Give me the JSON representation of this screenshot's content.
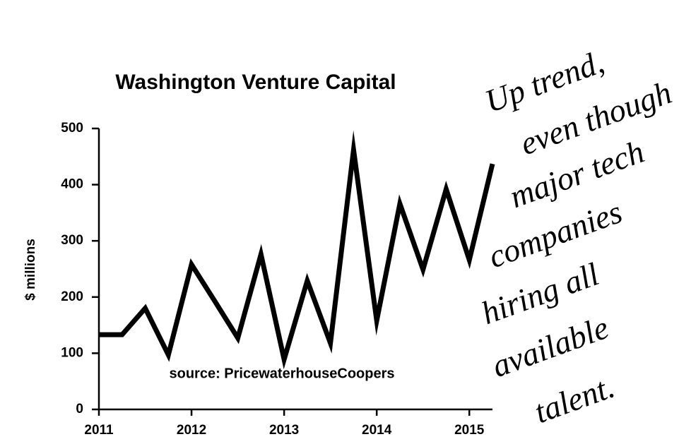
{
  "chart_data": {
    "type": "line",
    "title": "Washington Venture Capital",
    "ylabel": "$ millions",
    "source": "source: PricewaterhouseCoopers",
    "annotation": [
      "Up trend,",
      "even though",
      "major tech",
      "companies",
      "hiring all",
      "available",
      "talent."
    ],
    "x": [
      2011,
      2011.25,
      2011.5,
      2011.75,
      2012,
      2012.25,
      2012.5,
      2012.75,
      2013,
      2013.25,
      2013.5,
      2013.75,
      2014,
      2014.25,
      2014.5,
      2014.75,
      2015,
      2015.25
    ],
    "values": [
      133,
      133,
      180,
      97,
      258,
      193,
      127,
      276,
      89,
      229,
      118,
      462,
      158,
      366,
      249,
      392,
      266,
      437
    ],
    "color": "#000000",
    "xlim": [
      2011,
      2015.25
    ],
    "xticks": [
      2011,
      2012,
      2013,
      2014,
      2015
    ],
    "ylim": [
      0,
      500
    ],
    "yticks": [
      0,
      100,
      200,
      300,
      400,
      500
    ]
  }
}
